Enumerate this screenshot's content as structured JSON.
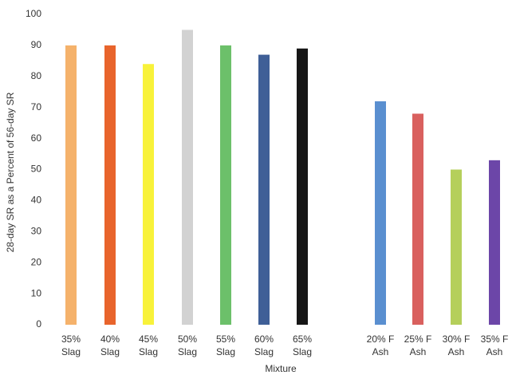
{
  "chart_data": {
    "type": "bar",
    "title": "",
    "xlabel": "Mixture",
    "ylabel": "28-day SR as a Percent of 56-day SR",
    "ylim": [
      0,
      100
    ],
    "yticks": [
      0,
      10,
      20,
      30,
      40,
      50,
      60,
      70,
      80,
      90,
      100
    ],
    "grid": false,
    "categories": [
      [
        "35%",
        "Slag"
      ],
      [
        "40%",
        "Slag"
      ],
      [
        "45%",
        "Slag"
      ],
      [
        "50%",
        "Slag"
      ],
      [
        "55%",
        "Slag"
      ],
      [
        "60%",
        "Slag"
      ],
      [
        "65%",
        "Slag"
      ],
      [
        "20% F",
        "Ash"
      ],
      [
        "25% F",
        "Ash"
      ],
      [
        "30% F",
        "Ash"
      ],
      [
        "35% F",
        "Ash"
      ]
    ],
    "values": [
      90,
      90,
      84,
      95,
      90,
      87,
      89,
      72,
      68,
      50,
      53
    ],
    "colors": [
      "#f5b26b",
      "#e8642c",
      "#f8f23a",
      "#d2d2d2",
      "#6cc06a",
      "#3f5f97",
      "#161616",
      "#5a8fd0",
      "#d9605e",
      "#b5cf5b",
      "#6c46a8"
    ]
  }
}
